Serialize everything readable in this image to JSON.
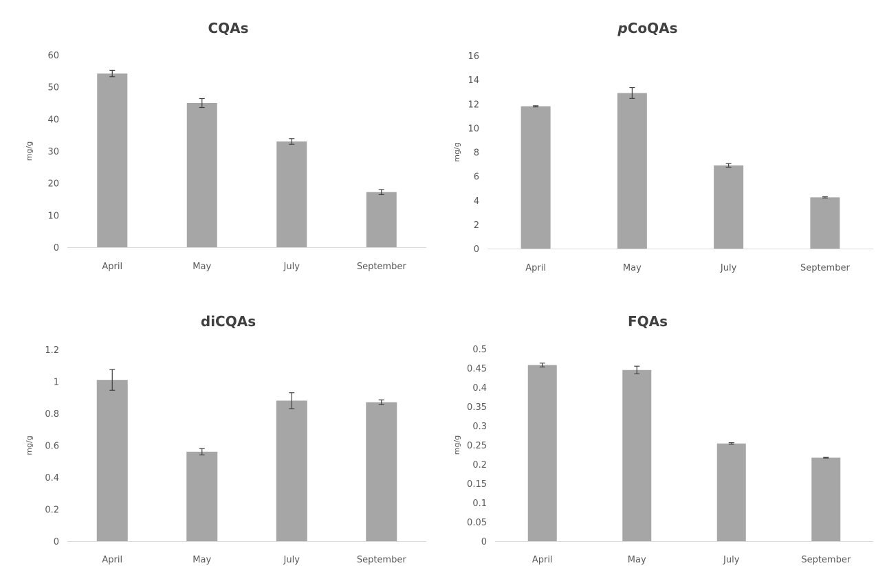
{
  "chart_data": [
    {
      "type": "bar",
      "title": "CQAs",
      "title_parts": [
        {
          "text": "CQAs",
          "italic": false
        }
      ],
      "categories": [
        "April",
        "May",
        "July",
        "September"
      ],
      "values": [
        54.2,
        45.0,
        33.0,
        17.2
      ],
      "errors": [
        1.0,
        1.4,
        0.9,
        0.8
      ],
      "ylabel": "mg/g",
      "ylim": [
        0,
        60
      ],
      "yticks": [
        0,
        10,
        20,
        30,
        40,
        50,
        60
      ],
      "ytick_labels": [
        "0",
        "10",
        "20",
        "30",
        "40",
        "50",
        "60"
      ],
      "bar_color": "#a6a6a6",
      "grid": false,
      "legend": "none"
    },
    {
      "type": "bar",
      "title": "pCoQAs",
      "title_parts": [
        {
          "text": "p",
          "italic": true
        },
        {
          "text": "CoQAs",
          "italic": false
        }
      ],
      "categories": [
        "April",
        "May",
        "July",
        "September"
      ],
      "values": [
        11.8,
        12.9,
        6.9,
        4.25
      ],
      "errors": [
        0.05,
        0.45,
        0.15,
        0.05
      ],
      "ylabel": "mg/g",
      "ylim": [
        0,
        16
      ],
      "yticks": [
        0,
        2,
        4,
        6,
        8,
        10,
        12,
        14,
        16
      ],
      "ytick_labels": [
        "0",
        "2",
        "4",
        "6",
        "8",
        "10",
        "12",
        "14",
        "16"
      ],
      "bar_color": "#a6a6a6",
      "grid": false,
      "legend": "none"
    },
    {
      "type": "bar",
      "title": "diCQAs",
      "title_parts": [
        {
          "text": "diCQAs",
          "italic": false
        }
      ],
      "categories": [
        "April",
        "May",
        "July",
        "September"
      ],
      "values": [
        1.01,
        0.56,
        0.88,
        0.87
      ],
      "errors": [
        0.065,
        0.02,
        0.05,
        0.015
      ],
      "ylabel": "mg/g",
      "ylim": [
        0,
        1.2
      ],
      "yticks": [
        0,
        0.2,
        0.4,
        0.6,
        0.8,
        1,
        1.2
      ],
      "ytick_labels": [
        "0",
        "0.2",
        "0.4",
        "0.6",
        "0.8",
        "1",
        "1.2"
      ],
      "bar_color": "#a6a6a6",
      "grid": false,
      "legend": "none"
    },
    {
      "type": "bar",
      "title": "FQAs",
      "title_parts": [
        {
          "text": "FQAs",
          "italic": false
        }
      ],
      "categories": [
        "April",
        "May",
        "July",
        "September"
      ],
      "values": [
        0.458,
        0.445,
        0.254,
        0.217
      ],
      "errors": [
        0.005,
        0.01,
        0.002,
        0.001
      ],
      "ylabel": "mg/g",
      "ylim": [
        0,
        0.5
      ],
      "yticks": [
        0,
        0.05,
        0.1,
        0.15,
        0.2,
        0.25,
        0.3,
        0.35,
        0.4,
        0.45,
        0.5
      ],
      "ytick_labels": [
        "0",
        "0.05",
        "0.1",
        "0.15",
        "0.2",
        "0.25",
        "0.3",
        "0.35",
        "0.4",
        "0.45",
        "0.5"
      ],
      "bar_color": "#a6a6a6",
      "grid": false,
      "legend": "none"
    }
  ]
}
